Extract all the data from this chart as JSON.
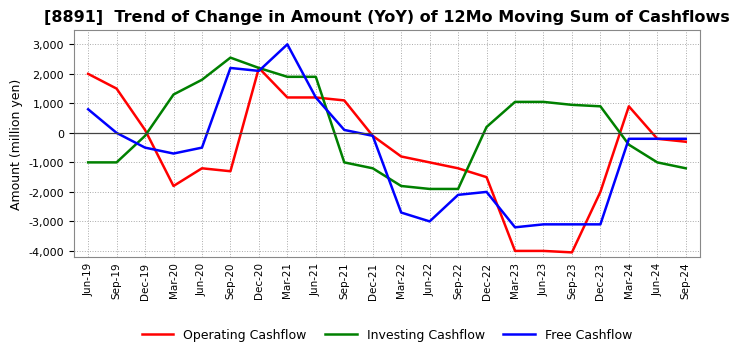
{
  "title": "[8891]  Trend of Change in Amount (YoY) of 12Mo Moving Sum of Cashflows",
  "ylabel": "Amount (million yen)",
  "xlabels": [
    "Jun-19",
    "Sep-19",
    "Dec-19",
    "Mar-20",
    "Jun-20",
    "Sep-20",
    "Dec-20",
    "Mar-21",
    "Jun-21",
    "Sep-21",
    "Dec-21",
    "Mar-22",
    "Jun-22",
    "Sep-22",
    "Dec-22",
    "Mar-23",
    "Jun-23",
    "Sep-23",
    "Dec-23",
    "Mar-24",
    "Jun-24",
    "Sep-24"
  ],
  "operating_cashflow": [
    2000,
    1500,
    100,
    -1800,
    -1200,
    -1300,
    2200,
    1200,
    1200,
    1100,
    -100,
    -800,
    -1000,
    -1200,
    -1500,
    -4000,
    -4000,
    -4050,
    -2000,
    900,
    -200,
    -300
  ],
  "investing_cashflow": [
    -1000,
    -1000,
    -100,
    1300,
    1800,
    2550,
    2200,
    1900,
    1900,
    -1000,
    -1200,
    -1800,
    -1900,
    -1900,
    200,
    1050,
    1050,
    950,
    900,
    -400,
    -1000,
    -1200
  ],
  "free_cashflow": [
    800,
    0,
    -500,
    -700,
    -500,
    2200,
    2100,
    3000,
    1200,
    100,
    -100,
    -2700,
    -3000,
    -2100,
    -2000,
    -3200,
    -3100,
    -3100,
    -3100,
    -200,
    -200,
    -200
  ],
  "op_color": "#ff0000",
  "inv_color": "#008000",
  "free_color": "#0000ff",
  "ylim": [
    -4200,
    3500
  ],
  "yticks": [
    -4000,
    -3000,
    -2000,
    -1000,
    0,
    1000,
    2000,
    3000
  ],
  "title_fontsize": 11.5,
  "legend_labels": [
    "Operating Cashflow",
    "Investing Cashflow",
    "Free Cashflow"
  ],
  "bg_color": "#ffffff",
  "line_width": 1.8
}
